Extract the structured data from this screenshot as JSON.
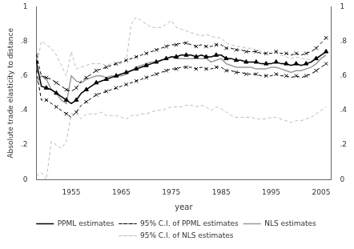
{
  "chart_data": {
    "type": "line",
    "xlabel": "year",
    "ylabel": "Absolute trade elasticity to distance",
    "x": [
      1948,
      1949,
      1950,
      1951,
      1952,
      1953,
      1954,
      1955,
      1956,
      1957,
      1958,
      1959,
      1960,
      1961,
      1962,
      1963,
      1964,
      1965,
      1966,
      1967,
      1968,
      1969,
      1970,
      1971,
      1972,
      1973,
      1974,
      1975,
      1976,
      1977,
      1978,
      1979,
      1980,
      1981,
      1982,
      1983,
      1984,
      1985,
      1986,
      1987,
      1988,
      1989,
      1990,
      1991,
      1992,
      1993,
      1994,
      1995,
      1996,
      1997,
      1998,
      1999,
      2000,
      2001,
      2002,
      2003,
      2004,
      2005,
      2006
    ],
    "series": [
      {
        "name": "PPML estimates",
        "color": "#000000",
        "marker": "triangle",
        "line_style": "solid",
        "values": [
          0.68,
          0.54,
          0.53,
          0.52,
          0.5,
          0.48,
          0.46,
          0.44,
          0.46,
          0.5,
          0.52,
          0.54,
          0.56,
          0.57,
          0.58,
          0.59,
          0.6,
          0.61,
          0.62,
          0.63,
          0.64,
          0.65,
          0.66,
          0.67,
          0.68,
          0.69,
          0.7,
          0.71,
          0.71,
          0.72,
          0.72,
          0.72,
          0.71,
          0.72,
          0.71,
          0.71,
          0.72,
          0.72,
          0.7,
          0.7,
          0.69,
          0.69,
          0.68,
          0.68,
          0.68,
          0.67,
          0.67,
          0.67,
          0.68,
          0.67,
          0.67,
          0.66,
          0.67,
          0.66,
          0.67,
          0.68,
          0.7,
          0.72,
          0.74
        ]
      },
      {
        "name": "95% C.I. of PPML estimates",
        "color": "#000000",
        "marker": "cross",
        "line_style": "dashed",
        "lower": [
          0.63,
          0.46,
          0.46,
          0.44,
          0.42,
          0.4,
          0.38,
          0.36,
          0.39,
          0.43,
          0.45,
          0.47,
          0.49,
          0.5,
          0.51,
          0.52,
          0.53,
          0.54,
          0.55,
          0.56,
          0.57,
          0.58,
          0.59,
          0.6,
          0.61,
          0.62,
          0.63,
          0.64,
          0.64,
          0.65,
          0.65,
          0.65,
          0.64,
          0.65,
          0.64,
          0.64,
          0.65,
          0.65,
          0.63,
          0.63,
          0.62,
          0.62,
          0.61,
          0.61,
          0.61,
          0.6,
          0.6,
          0.6,
          0.61,
          0.6,
          0.6,
          0.59,
          0.6,
          0.59,
          0.6,
          0.61,
          0.63,
          0.65,
          0.67
        ],
        "upper": [
          0.72,
          0.6,
          0.59,
          0.58,
          0.56,
          0.54,
          0.52,
          0.51,
          0.53,
          0.57,
          0.59,
          0.61,
          0.63,
          0.64,
          0.65,
          0.66,
          0.67,
          0.68,
          0.69,
          0.7,
          0.71,
          0.72,
          0.73,
          0.74,
          0.75,
          0.76,
          0.77,
          0.78,
          0.78,
          0.79,
          0.79,
          0.78,
          0.77,
          0.78,
          0.77,
          0.77,
          0.78,
          0.78,
          0.76,
          0.76,
          0.75,
          0.75,
          0.74,
          0.74,
          0.74,
          0.73,
          0.73,
          0.73,
          0.74,
          0.73,
          0.73,
          0.72,
          0.73,
          0.72,
          0.73,
          0.74,
          0.76,
          0.79,
          0.82
        ]
      },
      {
        "name": "NLS estimates",
        "color": "#999999",
        "marker": "none",
        "line_style": "solid",
        "values": [
          0.56,
          0.6,
          0.58,
          0.52,
          0.5,
          0.46,
          0.44,
          0.6,
          0.57,
          0.56,
          0.58,
          0.59,
          0.6,
          0.6,
          0.59,
          0.6,
          0.6,
          0.6,
          0.61,
          0.63,
          0.65,
          0.66,
          0.67,
          0.68,
          0.68,
          0.69,
          0.7,
          0.71,
          0.7,
          0.7,
          0.7,
          0.7,
          0.7,
          0.7,
          0.7,
          0.68,
          0.69,
          0.7,
          0.67,
          0.66,
          0.65,
          0.65,
          0.65,
          0.65,
          0.64,
          0.64,
          0.64,
          0.65,
          0.65,
          0.64,
          0.63,
          0.62,
          0.63,
          0.63,
          0.64,
          0.65,
          0.67,
          0.7,
          0.72
        ]
      },
      {
        "name": "95% C.I. of NLS estimates",
        "color": "#bbbbbb",
        "marker": "none",
        "line_style": "dashed",
        "lower": [
          0.02,
          0.04,
          0.0,
          0.22,
          0.2,
          0.18,
          0.22,
          0.38,
          0.38,
          0.35,
          0.38,
          0.38,
          0.38,
          0.39,
          0.37,
          0.37,
          0.37,
          0.36,
          0.35,
          0.37,
          0.37,
          0.38,
          0.38,
          0.39,
          0.4,
          0.4,
          0.41,
          0.42,
          0.42,
          0.42,
          0.43,
          0.43,
          0.42,
          0.43,
          0.42,
          0.4,
          0.42,
          0.41,
          0.39,
          0.37,
          0.36,
          0.36,
          0.36,
          0.36,
          0.35,
          0.35,
          0.35,
          0.36,
          0.36,
          0.35,
          0.34,
          0.33,
          0.34,
          0.34,
          0.35,
          0.36,
          0.38,
          0.4,
          0.42
        ],
        "upper": [
          0.65,
          0.8,
          0.78,
          0.76,
          0.72,
          0.66,
          0.6,
          0.74,
          0.64,
          0.65,
          0.66,
          0.67,
          0.67,
          0.67,
          0.66,
          0.67,
          0.67,
          0.67,
          0.69,
          0.9,
          0.94,
          0.92,
          0.9,
          0.88,
          0.88,
          0.88,
          0.9,
          0.92,
          0.88,
          0.87,
          0.86,
          0.85,
          0.84,
          0.83,
          0.84,
          0.83,
          0.82,
          0.82,
          0.79,
          0.78,
          0.77,
          0.77,
          0.76,
          0.76,
          0.75,
          0.74,
          0.73,
          0.73,
          0.73,
          0.72,
          0.71,
          0.7,
          0.71,
          0.7,
          0.7,
          0.69,
          0.7,
          0.71,
          0.73
        ]
      }
    ],
    "xlim": [
      1948,
      2007
    ],
    "xticks": [
      1955,
      1965,
      1975,
      1985,
      1995,
      2005
    ],
    "ylim": [
      0,
      1
    ],
    "yticks": [
      0,
      {
        "value": 0.2,
        "label": ".2"
      },
      {
        "value": 0.4,
        "label": ".4"
      },
      {
        "value": 0.6,
        "label": ".6"
      },
      {
        "value": 0.8,
        "label": ".8"
      },
      1
    ],
    "y2lim": [
      0,
      1
    ],
    "y2ticks": [
      0,
      {
        "value": 0.2,
        "label": ".2"
      },
      {
        "value": 0.4,
        "label": ".4"
      },
      {
        "value": 0.6,
        "label": ".6"
      },
      {
        "value": 0.8,
        "label": ".8"
      },
      1
    ],
    "grid": false,
    "legend": "bottom"
  }
}
